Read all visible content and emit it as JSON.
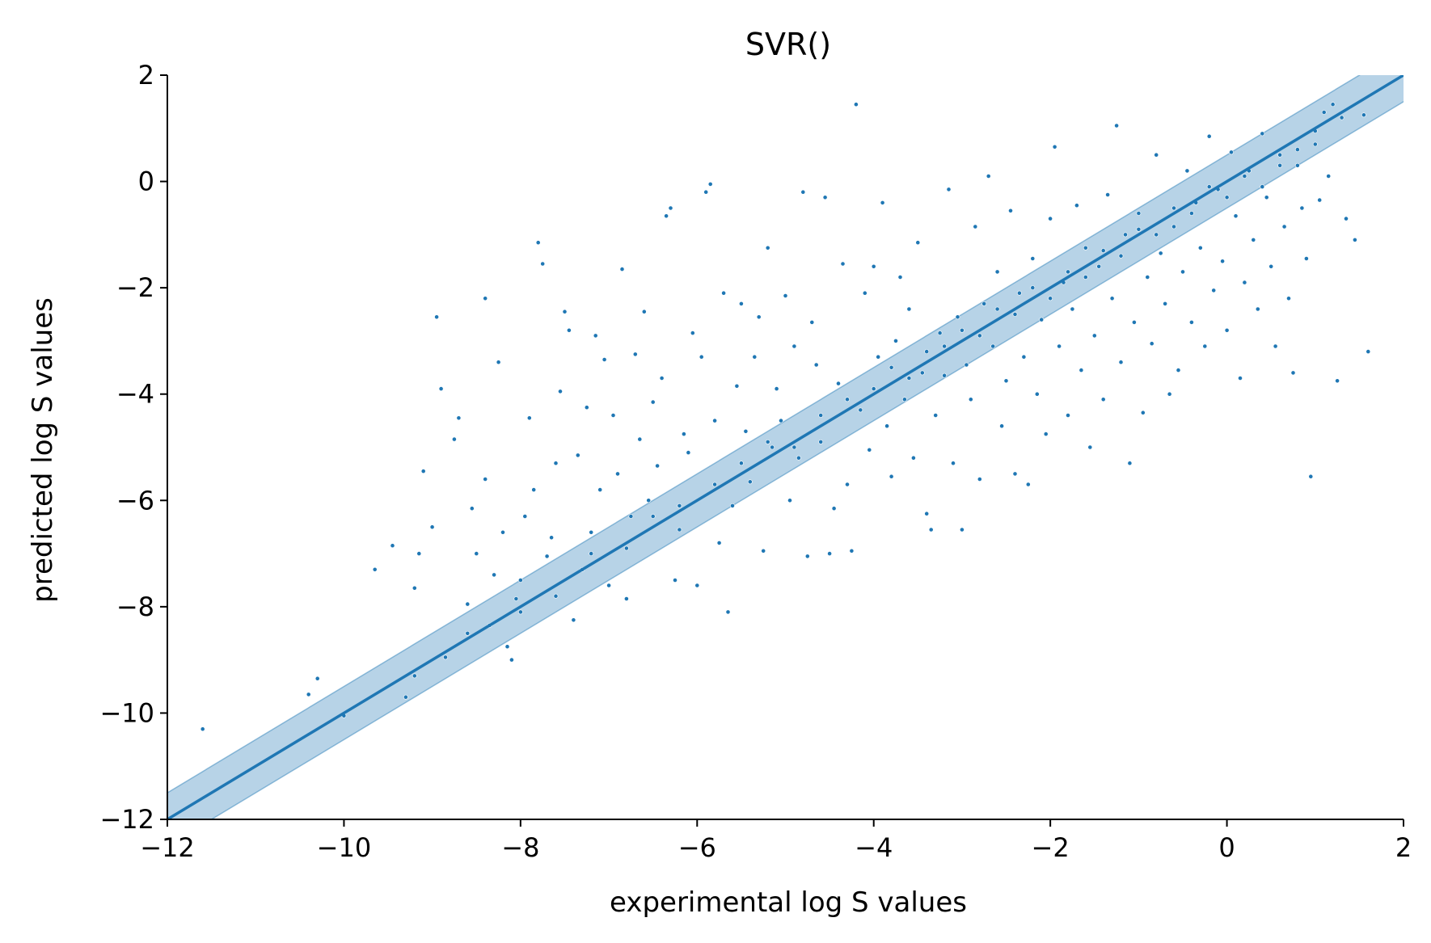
{
  "chart_data": {
    "type": "scatter",
    "title": "SVR()",
    "xlabel": "experimental log S values",
    "ylabel": "predicted log S values",
    "xlim": [
      -12,
      2
    ],
    "ylim": [
      -12,
      2
    ],
    "xticks": [
      -12,
      -10,
      -8,
      -6,
      -4,
      -2,
      0,
      2
    ],
    "yticks": [
      -12,
      -10,
      -8,
      -6,
      -4,
      -2,
      0,
      2
    ],
    "xtick_labels": [
      "−12",
      "−10",
      "−8",
      "−6",
      "−4",
      "−2",
      "0",
      "2"
    ],
    "ytick_labels": [
      "−12",
      "−10",
      "−8",
      "−6",
      "−4",
      "−2",
      "0",
      "2"
    ],
    "grid": false,
    "legend": "none",
    "colors": {
      "points": "#1f77b4",
      "line": "#1f77b4",
      "band": "#1f77b4"
    },
    "reference_line": {
      "slope": 1,
      "intercept": 0
    },
    "band_halfwidth": 0.5,
    "points": [
      [
        -11.6,
        -10.3
      ],
      [
        -10.4,
        -9.65
      ],
      [
        -10.3,
        -9.35
      ],
      [
        -10.0,
        -10.05
      ],
      [
        -9.65,
        -7.3
      ],
      [
        -9.45,
        -6.85
      ],
      [
        -9.3,
        -9.7
      ],
      [
        -9.2,
        -7.65
      ],
      [
        -9.15,
        -7.0
      ],
      [
        -9.1,
        -5.45
      ],
      [
        -9.0,
        -6.5
      ],
      [
        -8.95,
        -2.55
      ],
      [
        -8.9,
        -3.9
      ],
      [
        -8.85,
        -8.95
      ],
      [
        -8.75,
        -4.85
      ],
      [
        -8.7,
        -4.45
      ],
      [
        -8.6,
        -7.95
      ],
      [
        -8.55,
        -6.15
      ],
      [
        -8.5,
        -7.0
      ],
      [
        -8.4,
        -2.2
      ],
      [
        -8.4,
        -5.6
      ],
      [
        -8.35,
        -8.35
      ],
      [
        -8.3,
        -7.4
      ],
      [
        -8.25,
        -3.4
      ],
      [
        -8.2,
        -6.6
      ],
      [
        -8.15,
        -8.75
      ],
      [
        -8.1,
        -9.0
      ],
      [
        -8.05,
        -7.85
      ],
      [
        -8.0,
        -7.5
      ],
      [
        -7.95,
        -6.3
      ],
      [
        -7.9,
        -4.45
      ],
      [
        -7.85,
        -5.8
      ],
      [
        -7.8,
        -1.15
      ],
      [
        -7.75,
        -1.55
      ],
      [
        -7.7,
        -7.05
      ],
      [
        -7.65,
        -6.7
      ],
      [
        -7.6,
        -5.3
      ],
      [
        -7.55,
        -3.95
      ],
      [
        -7.5,
        -2.45
      ],
      [
        -7.45,
        -2.8
      ],
      [
        -7.4,
        -8.25
      ],
      [
        -7.35,
        -5.15
      ],
      [
        -7.3,
        -7.3
      ],
      [
        -7.25,
        -4.25
      ],
      [
        -7.2,
        -6.6
      ],
      [
        -7.15,
        -2.9
      ],
      [
        -7.1,
        -5.8
      ],
      [
        -7.05,
        -3.35
      ],
      [
        -7.0,
        -7.6
      ],
      [
        -6.95,
        -4.4
      ],
      [
        -6.9,
        -5.5
      ],
      [
        -6.85,
        -1.65
      ],
      [
        -6.8,
        -7.85
      ],
      [
        -6.75,
        -6.3
      ],
      [
        -6.7,
        -3.25
      ],
      [
        -6.65,
        -4.85
      ],
      [
        -6.6,
        -2.45
      ],
      [
        -6.55,
        -6.0
      ],
      [
        -6.5,
        -4.15
      ],
      [
        -6.45,
        -5.35
      ],
      [
        -6.4,
        -3.7
      ],
      [
        -6.35,
        -0.65
      ],
      [
        -6.3,
        -0.5
      ],
      [
        -6.25,
        -7.5
      ],
      [
        -6.2,
        -6.55
      ],
      [
        -6.15,
        -4.75
      ],
      [
        -6.1,
        -5.1
      ],
      [
        -6.05,
        -2.85
      ],
      [
        -6.0,
        -7.6
      ],
      [
        -5.95,
        -3.3
      ],
      [
        -5.9,
        -0.2
      ],
      [
        -5.85,
        -0.05
      ],
      [
        -5.8,
        -4.5
      ],
      [
        -5.75,
        -6.8
      ],
      [
        -5.7,
        -2.1
      ],
      [
        -5.65,
        -8.1
      ],
      [
        -5.6,
        -6.1
      ],
      [
        -5.55,
        -3.85
      ],
      [
        -5.5,
        -2.3
      ],
      [
        -5.45,
        -4.7
      ],
      [
        -5.4,
        -5.65
      ],
      [
        -5.35,
        -3.3
      ],
      [
        -5.3,
        -2.55
      ],
      [
        -5.25,
        -6.95
      ],
      [
        -5.2,
        -1.25
      ],
      [
        -5.15,
        -5.0
      ],
      [
        -5.1,
        -3.9
      ],
      [
        -5.05,
        -4.5
      ],
      [
        -5.0,
        -2.15
      ],
      [
        -4.95,
        -6.0
      ],
      [
        -4.9,
        -3.1
      ],
      [
        -4.85,
        -5.2
      ],
      [
        -4.8,
        -0.2
      ],
      [
        -4.75,
        -7.05
      ],
      [
        -4.7,
        -2.65
      ],
      [
        -4.65,
        -3.45
      ],
      [
        -4.6,
        -4.9
      ],
      [
        -4.55,
        -0.3
      ],
      [
        -4.5,
        -7.0
      ],
      [
        -4.45,
        -6.15
      ],
      [
        -4.4,
        -3.8
      ],
      [
        -4.35,
        -1.55
      ],
      [
        -4.3,
        -5.7
      ],
      [
        -4.25,
        -6.95
      ],
      [
        -4.2,
        1.45
      ],
      [
        -4.15,
        -4.3
      ],
      [
        -4.1,
        -2.1
      ],
      [
        -4.05,
        -5.05
      ],
      [
        -4.0,
        -1.6
      ],
      [
        -3.95,
        -3.3
      ],
      [
        -3.9,
        -0.4
      ],
      [
        -3.85,
        -4.6
      ],
      [
        -3.8,
        -5.55
      ],
      [
        -3.75,
        -3.0
      ],
      [
        -3.7,
        -1.8
      ],
      [
        -3.65,
        -4.1
      ],
      [
        -3.6,
        -2.4
      ],
      [
        -3.55,
        -5.2
      ],
      [
        -3.5,
        -1.15
      ],
      [
        -3.45,
        -3.6
      ],
      [
        -3.4,
        -6.25
      ],
      [
        -3.35,
        -6.55
      ],
      [
        -3.3,
        -4.4
      ],
      [
        -3.25,
        -2.85
      ],
      [
        -3.2,
        -3.65
      ],
      [
        -3.15,
        -0.15
      ],
      [
        -3.1,
        -5.3
      ],
      [
        -3.05,
        -2.55
      ],
      [
        -3.0,
        -6.55
      ],
      [
        -2.95,
        -3.45
      ],
      [
        -2.9,
        -4.1
      ],
      [
        -2.85,
        -0.85
      ],
      [
        -2.8,
        -5.6
      ],
      [
        -2.75,
        -2.3
      ],
      [
        -2.7,
        0.1
      ],
      [
        -2.65,
        -3.1
      ],
      [
        -2.6,
        -1.7
      ],
      [
        -2.55,
        -4.6
      ],
      [
        -2.5,
        -3.75
      ],
      [
        -2.45,
        -0.55
      ],
      [
        -2.4,
        -5.5
      ],
      [
        -2.35,
        -2.1
      ],
      [
        -2.3,
        -3.3
      ],
      [
        -2.25,
        -5.7
      ],
      [
        -2.2,
        -1.45
      ],
      [
        -2.15,
        -4.0
      ],
      [
        -2.1,
        -2.6
      ],
      [
        -2.05,
        -4.75
      ],
      [
        -2.0,
        -0.7
      ],
      [
        -1.95,
        0.65
      ],
      [
        -1.9,
        -3.1
      ],
      [
        -1.85,
        -1.9
      ],
      [
        -1.8,
        -4.4
      ],
      [
        -1.75,
        -2.4
      ],
      [
        -1.7,
        -0.45
      ],
      [
        -1.65,
        -3.55
      ],
      [
        -1.6,
        -1.25
      ],
      [
        -1.55,
        -5.0
      ],
      [
        -1.5,
        -2.9
      ],
      [
        -1.45,
        -1.6
      ],
      [
        -1.4,
        -4.1
      ],
      [
        -1.35,
        -0.25
      ],
      [
        -1.3,
        -2.2
      ],
      [
        -1.25,
        1.05
      ],
      [
        -1.2,
        -3.4
      ],
      [
        -1.15,
        -1.0
      ],
      [
        -1.1,
        -5.3
      ],
      [
        -1.05,
        -2.65
      ],
      [
        -1.0,
        -0.6
      ],
      [
        -0.95,
        -4.35
      ],
      [
        -0.9,
        -1.8
      ],
      [
        -0.85,
        -3.05
      ],
      [
        -0.8,
        0.5
      ],
      [
        -0.75,
        -1.35
      ],
      [
        -0.7,
        -2.3
      ],
      [
        -0.65,
        -4.0
      ],
      [
        -0.6,
        -0.85
      ],
      [
        -0.55,
        -3.55
      ],
      [
        -0.5,
        -1.7
      ],
      [
        -0.45,
        0.2
      ],
      [
        -0.4,
        -2.65
      ],
      [
        -0.35,
        -0.4
      ],
      [
        -0.3,
        -1.25
      ],
      [
        -0.25,
        -3.1
      ],
      [
        -0.2,
        0.85
      ],
      [
        -0.15,
        -2.05
      ],
      [
        -0.1,
        -0.15
      ],
      [
        -0.05,
        -1.5
      ],
      [
        0.0,
        -2.8
      ],
      [
        0.05,
        0.55
      ],
      [
        0.1,
        -0.65
      ],
      [
        0.15,
        -3.7
      ],
      [
        0.2,
        -1.9
      ],
      [
        0.25,
        0.2
      ],
      [
        0.3,
        -1.1
      ],
      [
        0.35,
        -2.4
      ],
      [
        0.4,
        0.9
      ],
      [
        0.45,
        -0.3
      ],
      [
        0.5,
        -1.6
      ],
      [
        0.55,
        -3.1
      ],
      [
        0.6,
        0.3
      ],
      [
        0.65,
        -0.85
      ],
      [
        0.7,
        -2.2
      ],
      [
        0.75,
        -3.6
      ],
      [
        0.8,
        0.6
      ],
      [
        0.85,
        -0.5
      ],
      [
        0.9,
        -1.45
      ],
      [
        0.95,
        -5.55
      ],
      [
        1.0,
        0.95
      ],
      [
        1.05,
        -0.35
      ],
      [
        1.1,
        1.3
      ],
      [
        1.15,
        0.1
      ],
      [
        1.2,
        1.45
      ],
      [
        1.25,
        -3.75
      ],
      [
        1.3,
        1.2
      ],
      [
        1.35,
        -0.7
      ],
      [
        1.45,
        -1.1
      ],
      [
        1.55,
        1.25
      ],
      [
        1.6,
        -3.2
      ],
      [
        -4.6,
        -4.4
      ],
      [
        -4.3,
        -4.1
      ],
      [
        -4.0,
        -3.9
      ],
      [
        -3.8,
        -3.5
      ],
      [
        -3.6,
        -3.7
      ],
      [
        -3.4,
        -3.2
      ],
      [
        -3.2,
        -3.1
      ],
      [
        -3.0,
        -2.8
      ],
      [
        -2.8,
        -2.9
      ],
      [
        -2.6,
        -2.4
      ],
      [
        -2.4,
        -2.5
      ],
      [
        -2.2,
        -2.0
      ],
      [
        -2.0,
        -2.2
      ],
      [
        -1.8,
        -1.7
      ],
      [
        -1.6,
        -1.8
      ],
      [
        -1.4,
        -1.3
      ],
      [
        -1.2,
        -1.4
      ],
      [
        -1.0,
        -0.9
      ],
      [
        -0.8,
        -1.0
      ],
      [
        -0.6,
        -0.5
      ],
      [
        -0.4,
        -0.6
      ],
      [
        -0.2,
        -0.1
      ],
      [
        0.0,
        -0.3
      ],
      [
        0.2,
        0.1
      ],
      [
        0.4,
        -0.1
      ],
      [
        0.6,
        0.5
      ],
      [
        0.8,
        0.3
      ],
      [
        1.0,
        0.7
      ],
      [
        -5.5,
        -5.3
      ],
      [
        -5.2,
        -4.9
      ],
      [
        -4.9,
        -5.0
      ],
      [
        -6.5,
        -6.3
      ],
      [
        -6.8,
        -6.9
      ],
      [
        -7.2,
        -7.0
      ],
      [
        -7.6,
        -7.8
      ],
      [
        -8.0,
        -8.1
      ],
      [
        -8.6,
        -8.5
      ],
      [
        -9.2,
        -9.3
      ],
      [
        -5.8,
        -5.7
      ],
      [
        -6.2,
        -6.1
      ]
    ]
  }
}
